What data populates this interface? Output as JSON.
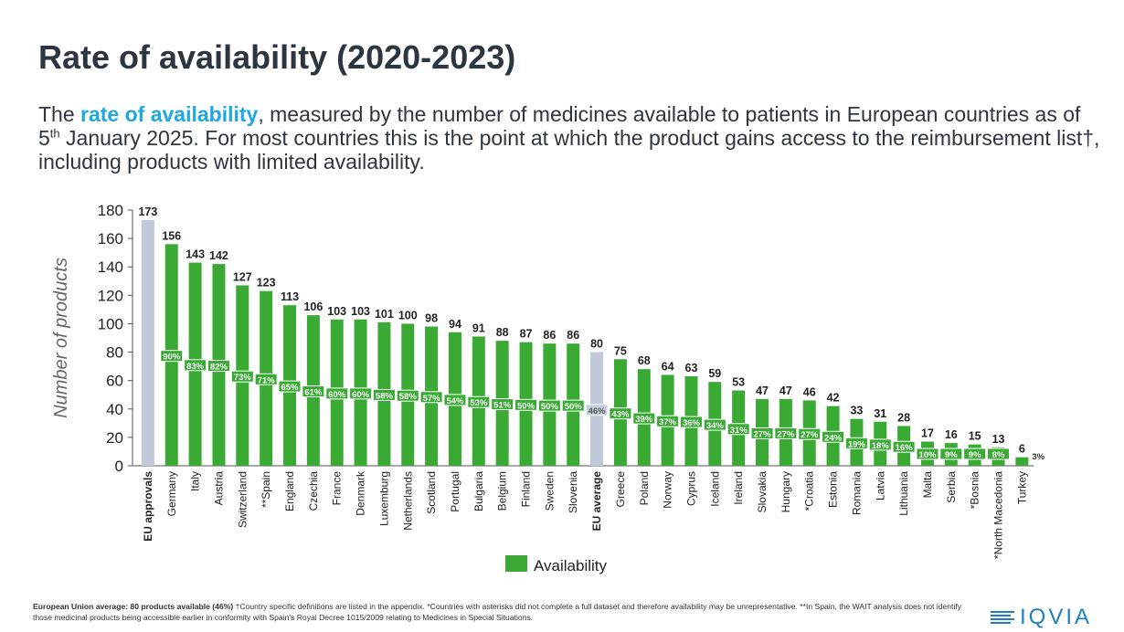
{
  "header": {
    "title": "Rate of availability (2020-2023)",
    "subtitle_part1": "The ",
    "subtitle_highlight": "rate of availability",
    "subtitle_part2": ", measured by the number of medicines available to patients in European countries as of 5",
    "subtitle_sup": "th",
    "subtitle_part3": " January 2025. For most countries this is the point at which the product gains access to the reimbursement list†, including products with limited availability."
  },
  "footnote": {
    "bold": "European Union average: 80 products available (46%)",
    "text": " †Country specific definitions are listed in the appendix. *Countries with asterisks did not complete a full dataset and therefore availability may be unrepresentative. **In Spain, the WAIT analysis does not identify those medicinal products being accessible earlier in conformity with Spain's Royal Decree 1015/2009 relating to Medicines in Special Situations."
  },
  "logo": {
    "text": "IQVIA"
  },
  "colors": {
    "green": "#3aaa35",
    "grey": "#bfc9d9",
    "axis": "#555555"
  },
  "chart_data": {
    "type": "bar",
    "ylabel": "Number of products",
    "ylim": [
      0,
      180
    ],
    "yticks": [
      0,
      20,
      40,
      60,
      80,
      100,
      120,
      140,
      160,
      180
    ],
    "legend": {
      "label": "Availability",
      "placement": "bottom-center"
    },
    "categories": [
      "EU approvals",
      "Germany",
      "Italy",
      "Austria",
      "Switzerland",
      "**Spain",
      "England",
      "Czechia",
      "France",
      "Denmark",
      "Luxemburg",
      "Netherlands",
      "Scotland",
      "Portugal",
      "Bulgaria",
      "Belgium",
      "Finland",
      "Sweden",
      "Slovenia",
      "EU average",
      "Greece",
      "Poland",
      "Norway",
      "Cyprus",
      "Iceland",
      "Ireland",
      "Slovakia",
      "Hungary",
      "*Croatia",
      "Estonia",
      "Romania",
      "Latvia",
      "Lithuania",
      "Malta",
      "Serbia",
      "*Bosnia",
      "*North Macedonia",
      "Turkey"
    ],
    "values": [
      173,
      156,
      143,
      142,
      127,
      123,
      113,
      106,
      103,
      103,
      101,
      100,
      98,
      94,
      91,
      88,
      87,
      86,
      86,
      80,
      75,
      68,
      64,
      63,
      59,
      53,
      47,
      47,
      46,
      42,
      33,
      31,
      28,
      17,
      16,
      15,
      13,
      6
    ],
    "percent_labels": [
      "",
      "90%",
      "83%",
      "82%",
      "73%",
      "71%",
      "65%",
      "61%",
      "60%",
      "60%",
      "58%",
      "58%",
      "57%",
      "54%",
      "53%",
      "51%",
      "50%",
      "50%",
      "50%",
      "46%",
      "43%",
      "39%",
      "37%",
      "36%",
      "34%",
      "31%",
      "27%",
      "27%",
      "27%",
      "24%",
      "19%",
      "18%",
      "16%",
      "10%",
      "9%",
      "9%",
      "8%",
      "3%"
    ],
    "highlight_categories": [
      "EU approvals",
      "EU average"
    ]
  }
}
